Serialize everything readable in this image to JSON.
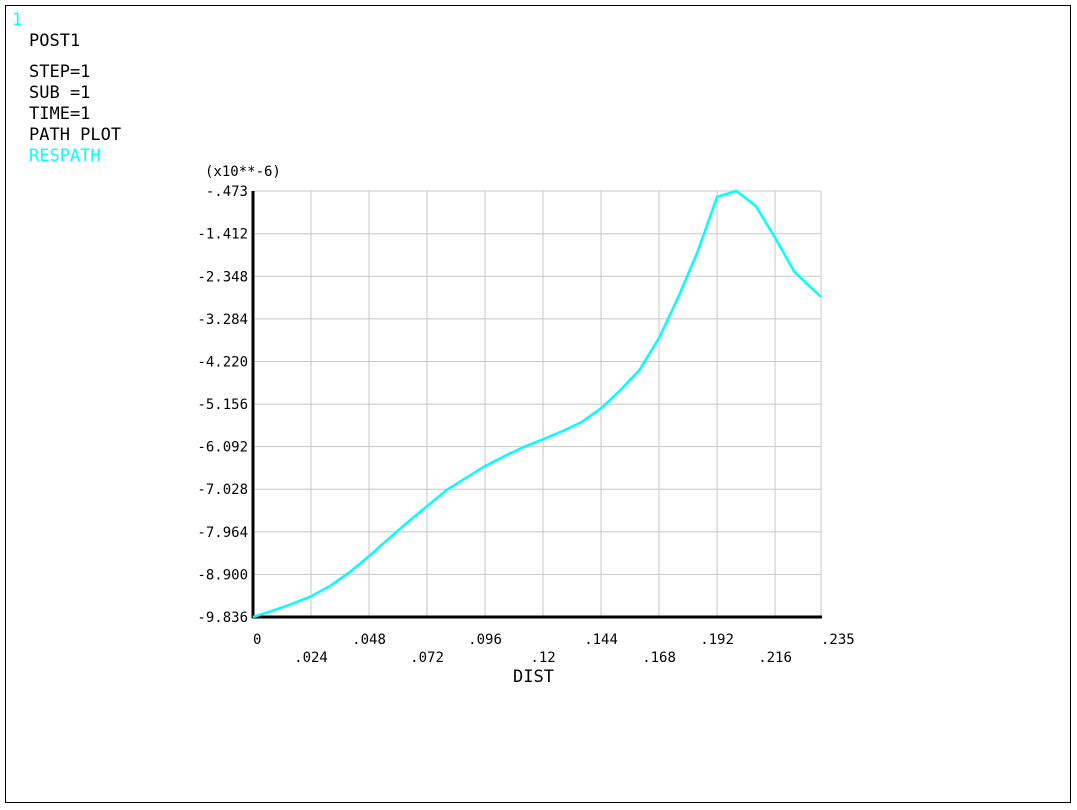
{
  "window_number": "1",
  "info": {
    "lines": [
      "POST1",
      "STEP=1",
      "SUB =1",
      "TIME=1",
      "PATH PLOT"
    ],
    "series_name": "RESPATH"
  },
  "colors": {
    "curve": "#00ffff",
    "grid": "#c8c8c8",
    "axis": "#000000"
  },
  "chart_data": {
    "type": "line",
    "title": "",
    "xlabel": "DIST",
    "ylabel": "",
    "y_multiplier_label": "(x10**-6)",
    "xlim": [
      0,
      0.235
    ],
    "ylim": [
      -9.836,
      -0.473
    ],
    "x_ticks": [
      "0",
      ".024",
      ".048",
      ".072",
      ".096",
      ".12",
      ".144",
      ".168",
      ".192",
      ".216",
      ".235"
    ],
    "x_tick_values": [
      0,
      0.024,
      0.048,
      0.072,
      0.096,
      0.12,
      0.144,
      0.168,
      0.192,
      0.216,
      0.235
    ],
    "y_ticks": [
      "-.473",
      "-1.412",
      "-2.348",
      "-3.284",
      "-4.220",
      "-5.156",
      "-6.092",
      "-7.028",
      "-7.964",
      "-8.900",
      "-9.836"
    ],
    "y_tick_values": [
      -0.473,
      -1.412,
      -2.348,
      -3.284,
      -4.22,
      -5.156,
      -6.092,
      -7.028,
      -7.964,
      -8.9,
      -9.836
    ],
    "grid": true,
    "series": [
      {
        "name": "RESPATH",
        "x": [
          0,
          0.008,
          0.016,
          0.024,
          0.032,
          0.04,
          0.048,
          0.056,
          0.064,
          0.072,
          0.08,
          0.088,
          0.096,
          0.104,
          0.112,
          0.12,
          0.128,
          0.136,
          0.144,
          0.152,
          0.16,
          0.168,
          0.176,
          0.184,
          0.192,
          0.2,
          0.208,
          0.216,
          0.224,
          0.235
        ],
        "y": [
          -9.836,
          -9.7,
          -9.55,
          -9.38,
          -9.15,
          -8.85,
          -8.5,
          -8.12,
          -7.75,
          -7.4,
          -7.05,
          -6.78,
          -6.52,
          -6.3,
          -6.1,
          -5.93,
          -5.75,
          -5.55,
          -5.25,
          -4.85,
          -4.4,
          -3.7,
          -2.8,
          -1.8,
          -0.6,
          -0.473,
          -0.8,
          -1.5,
          -2.25,
          -2.8
        ]
      }
    ]
  }
}
